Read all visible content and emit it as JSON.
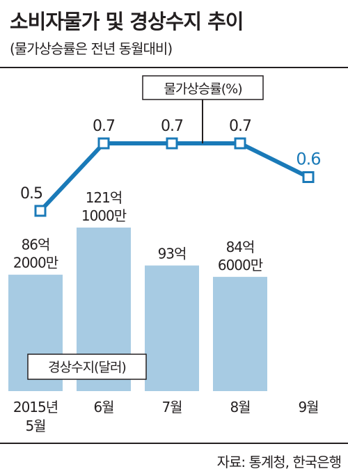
{
  "title": "소비자물가 및 경상수지 추이",
  "subtitle": "(물가상승률은 전년 동월대비)",
  "source": "자료: 통계청, 한국은행",
  "colors": {
    "line": "#1a7ab8",
    "bar": "#a7cbe3",
    "text": "#231f20"
  },
  "chart_data": [
    {
      "type": "line",
      "series_label": "물가상승률(%)",
      "categories": [
        "2015년 5월",
        "6월",
        "7월",
        "8월",
        "9월"
      ],
      "values": [
        0.5,
        0.7,
        0.7,
        0.7,
        0.6
      ],
      "value_labels": [
        "0.5",
        "0.7",
        "0.7",
        "0.7",
        "0.6"
      ]
    },
    {
      "type": "bar",
      "series_label": "경상수지(달러)",
      "categories": [
        "2015년 5월",
        "6월",
        "7월",
        "8월",
        "9월"
      ],
      "values_usd": [
        8620000000,
        12110000000,
        9300000000,
        8460000000,
        null
      ],
      "value_labels": [
        [
          "86억",
          "2000만"
        ],
        [
          "121억",
          "1000만"
        ],
        [
          "93억"
        ],
        [
          "84억",
          "6000만"
        ],
        []
      ]
    }
  ],
  "x_labels": [
    [
      "2015년",
      "5월"
    ],
    [
      "6월"
    ],
    [
      "7월"
    ],
    [
      "8월"
    ],
    [
      "9월"
    ]
  ]
}
